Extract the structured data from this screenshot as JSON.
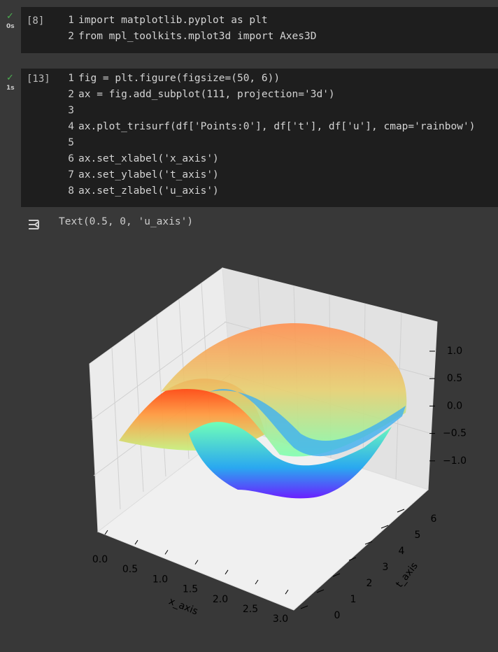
{
  "cells": [
    {
      "status_time": "0s",
      "exec_count": "[8]",
      "lines": [
        {
          "number": "1",
          "code": "import matplotlib.pyplot as plt"
        },
        {
          "number": "2",
          "code": "from mpl_toolkits.mplot3d import Axes3D"
        }
      ]
    },
    {
      "status_time": "1s",
      "exec_count": "[13]",
      "lines": [
        {
          "number": "1",
          "code": "fig = plt.figure(figsize=(50, 6))"
        },
        {
          "number": "2",
          "code": "ax = fig.add_subplot(111, projection='3d')"
        },
        {
          "number": "3",
          "code": ""
        },
        {
          "number": "4",
          "code": "ax.plot_trisurf(df['Points:0'], df['t'], df['u'], cmap='rainbow')"
        },
        {
          "number": "5",
          "code": ""
        },
        {
          "number": "6",
          "code": "ax.set_xlabel('x_axis')"
        },
        {
          "number": "7",
          "code": "ax.set_ylabel('t_axis')"
        },
        {
          "number": "8",
          "code": "ax.set_zlabel('u_axis')"
        }
      ]
    }
  ],
  "output": {
    "text": "Text(0.5, 0, 'u_axis')",
    "plot": {
      "x_label": "x_axis",
      "y_label": "t_axis",
      "xticks": [
        "0.0",
        "0.5",
        "1.0",
        "1.5",
        "2.0",
        "2.5",
        "3.0"
      ],
      "yticks": [
        "0",
        "1",
        "2",
        "3",
        "4",
        "5",
        "6"
      ],
      "zticks": [
        "1.0",
        "0.5",
        "0.0",
        "−0.5",
        "−1.0"
      ]
    }
  }
}
